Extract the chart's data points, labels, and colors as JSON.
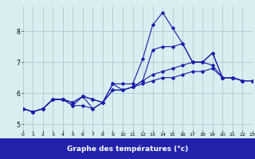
{
  "background_color": "#d8eef0",
  "grid_color": "#b0c8d0",
  "line_color": "#1a1aaa",
  "xlabel": "Graphe des températures (°c)",
  "xlabel_color": "#ffffff",
  "xlabel_bg": "#2222aa",
  "xlim": [
    0,
    23
  ],
  "ylim": [
    4.8,
    8.8
  ],
  "yticks": [
    5,
    6,
    7,
    8
  ],
  "xticks": [
    0,
    1,
    2,
    3,
    4,
    5,
    6,
    7,
    8,
    9,
    10,
    11,
    12,
    13,
    14,
    15,
    16,
    17,
    18,
    19,
    20,
    21,
    22,
    23
  ],
  "series": [
    [
      5.5,
      5.4,
      5.5,
      5.8,
      5.8,
      5.6,
      5.6,
      5.5,
      5.7,
      6.3,
      6.3,
      6.3,
      7.1,
      8.2,
      8.6,
      8.1,
      7.6,
      7.0,
      7.0,
      7.3,
      6.5,
      6.5,
      6.4,
      6.4
    ],
    [
      5.5,
      5.4,
      5.5,
      5.8,
      5.8,
      5.6,
      5.9,
      5.5,
      5.7,
      6.3,
      6.1,
      6.2,
      6.4,
      7.4,
      7.5,
      7.5,
      7.6,
      7.0,
      7.0,
      7.3,
      6.5,
      6.5,
      6.4,
      6.4
    ],
    [
      5.5,
      5.4,
      5.5,
      5.8,
      5.8,
      5.7,
      5.9,
      5.8,
      5.7,
      6.1,
      6.1,
      6.2,
      6.4,
      6.6,
      6.7,
      6.8,
      6.9,
      7.0,
      7.0,
      6.9,
      6.5,
      6.5,
      6.4,
      6.4
    ],
    [
      5.5,
      5.4,
      5.5,
      5.8,
      5.8,
      5.7,
      5.9,
      5.8,
      5.7,
      6.1,
      6.1,
      6.2,
      6.3,
      6.4,
      6.5,
      6.5,
      6.6,
      6.7,
      6.7,
      6.8,
      6.5,
      6.5,
      6.4,
      6.4
    ]
  ]
}
